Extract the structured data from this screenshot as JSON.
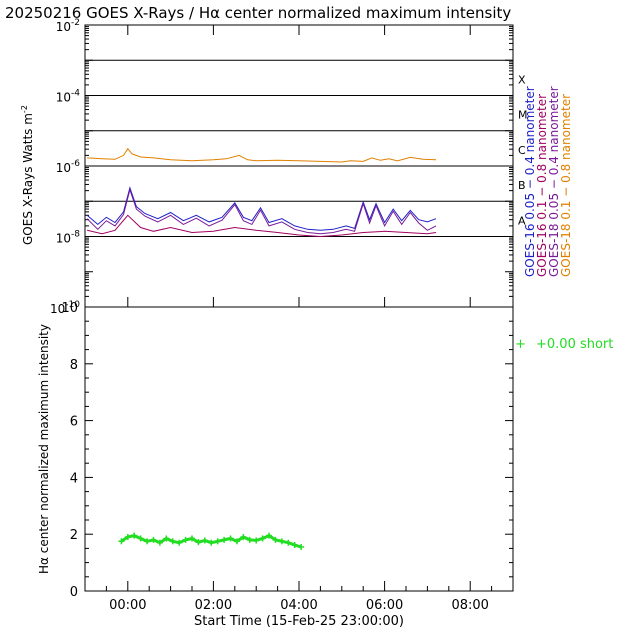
{
  "title": "20250216 GOES X-Rays / Hα center normalized maximum intensity",
  "top_panel": {
    "ylabel": "GOES X-Rays Watts m",
    "ylabel_sup": "-2",
    "y_ticks": [
      {
        "base": "10",
        "exp": "-2"
      },
      {
        "base": "10",
        "exp": "-4"
      },
      {
        "base": "10",
        "exp": "-6"
      },
      {
        "base": "10",
        "exp": "-8"
      },
      {
        "base": "10",
        "exp": "-10"
      }
    ],
    "flare_classes": [
      "X",
      "M",
      "C",
      "B",
      "A"
    ],
    "legend": [
      {
        "label": "GOES-16  0.05 − 0.4  nanometer",
        "color": "#2020c8"
      },
      {
        "label": "GOES-16  0.1  − 0.8  nanometer",
        "color": "#a00060"
      },
      {
        "label": "GOES-18  0.05 − 0.4  nanometer",
        "color": "#7a1a9a"
      },
      {
        "label": "GOES-18  0.1  − 0.8  nanometer",
        "color": "#e08000"
      }
    ]
  },
  "bottom_panel": {
    "ylabel": "Hα center normalized maximum intensity",
    "xlabel": "Start Time (15-Feb-25 23:00:00)",
    "legend": {
      "marker": "+",
      "label": "+0.00 short",
      "color": "#22dd22"
    }
  },
  "chart_data": [
    {
      "type": "line",
      "title": "GOES X-Rays",
      "y_scale": "log",
      "ylim": [
        1e-10,
        0.01
      ],
      "x_unit": "hours since 00:00 UT 16-Feb-2025",
      "xlim": [
        -1,
        9
      ],
      "flare_thresholds": [
        1e-08,
        1e-07,
        1e-06,
        1e-05,
        0.0001,
        0.001
      ],
      "series": [
        {
          "name": "GOES-18 0.1 − 0.8 nanometer",
          "x": [
            -0.95,
            -0.6,
            -0.3,
            -0.1,
            0.0,
            0.1,
            0.3,
            0.6,
            1.0,
            1.5,
            2.0,
            2.3,
            2.6,
            2.8,
            3.0,
            3.5,
            4.0,
            4.5,
            5.0,
            5.2,
            5.5,
            5.7,
            5.9,
            6.1,
            6.3,
            6.6,
            6.9,
            7.2
          ],
          "values": [
            1.7e-06,
            1.6e-06,
            1.55e-06,
            2e-06,
            3.1e-06,
            2.2e-06,
            1.8e-06,
            1.7e-06,
            1.5e-06,
            1.4e-06,
            1.5e-06,
            1.6e-06,
            2e-06,
            1.5e-06,
            1.4e-06,
            1.45e-06,
            1.4e-06,
            1.35e-06,
            1.3e-06,
            1.4e-06,
            1.35e-06,
            1.7e-06,
            1.45e-06,
            1.6e-06,
            1.4e-06,
            1.75e-06,
            1.55e-06,
            1.5e-06
          ]
        },
        {
          "name": "GOES-16 0.05 − 0.4 nanometer",
          "x": [
            -0.95,
            -0.7,
            -0.5,
            -0.3,
            -0.1,
            0.05,
            0.2,
            0.4,
            0.7,
            1.0,
            1.3,
            1.6,
            1.9,
            2.2,
            2.5,
            2.7,
            2.9,
            3.1,
            3.3,
            3.6,
            3.9,
            4.2,
            4.5,
            4.8,
            5.1,
            5.3,
            5.5,
            5.65,
            5.8,
            6.0,
            6.2,
            6.4,
            6.6,
            6.8,
            7.0,
            7.2
          ],
          "values": [
            4e-08,
            2.2e-08,
            3.5e-08,
            2.5e-08,
            5e-08,
            2.4e-07,
            7e-08,
            4.5e-08,
            3.2e-08,
            4.8e-08,
            2.8e-08,
            4e-08,
            2.6e-08,
            3.5e-08,
            9e-08,
            3.5e-08,
            2.8e-08,
            6.5e-08,
            2.5e-08,
            3.2e-08,
            2e-08,
            1.6e-08,
            1.5e-08,
            1.6e-08,
            2e-08,
            1.7e-08,
            9.5e-08,
            3e-08,
            8.5e-08,
            2.5e-08,
            6e-08,
            2.8e-08,
            5.5e-08,
            3e-08,
            2.6e-08,
            3.2e-08
          ]
        },
        {
          "name": "GOES-16 0.1 − 0.8 nanometer",
          "x": [
            -0.95,
            -0.6,
            -0.3,
            0.0,
            0.3,
            0.6,
            1.0,
            1.5,
            2.0,
            2.5,
            3.0,
            3.5,
            4.0,
            4.5,
            5.0,
            5.5,
            6.0,
            6.5,
            7.0,
            7.2
          ],
          "values": [
            1.5e-08,
            1.2e-08,
            1.5e-08,
            4e-08,
            1.8e-08,
            1.4e-08,
            1.8e-08,
            1.3e-08,
            1.4e-08,
            1.8e-08,
            1.5e-08,
            1.3e-08,
            1.1e-08,
            1e-08,
            1.1e-08,
            1.3e-08,
            1.4e-08,
            1.3e-08,
            1.2e-08,
            1.3e-08
          ]
        },
        {
          "name": "GOES-18 0.05 − 0.4 nanometer",
          "x": [
            -0.95,
            -0.7,
            -0.5,
            -0.3,
            -0.1,
            0.05,
            0.2,
            0.4,
            0.7,
            1.0,
            1.3,
            1.6,
            1.9,
            2.2,
            2.5,
            2.7,
            2.9,
            3.1,
            3.3,
            3.6,
            3.9,
            4.2,
            4.5,
            4.8,
            5.1,
            5.3,
            5.5,
            5.65,
            5.8,
            6.0,
            6.2,
            6.4,
            6.6,
            6.8,
            7.0,
            7.2
          ],
          "values": [
            3.2e-08,
            1.6e-08,
            2.8e-08,
            2e-08,
            4.2e-08,
            2.1e-07,
            6e-08,
            3.8e-08,
            2.6e-08,
            4e-08,
            2.2e-08,
            3.3e-08,
            2e-08,
            2.9e-08,
            8e-08,
            2.8e-08,
            2.2e-08,
            5.6e-08,
            2e-08,
            2.6e-08,
            1.6e-08,
            1.3e-08,
            1.2e-08,
            1.3e-08,
            1.6e-08,
            1.4e-08,
            8.5e-08,
            2.4e-08,
            7.5e-08,
            2e-08,
            5.2e-08,
            2.2e-08,
            4.8e-08,
            2.4e-08,
            1.5e-08,
            2e-08
          ]
        }
      ]
    },
    {
      "type": "scatter",
      "title": "Hα center normalized maximum intensity",
      "ylim": [
        0,
        10
      ],
      "y_ticks": [
        0,
        2,
        4,
        6,
        8,
        10
      ],
      "xlim": [
        -1,
        9
      ],
      "x_ticks": [
        0,
        2,
        4,
        6,
        8
      ],
      "x_tick_labels": [
        "00:00",
        "02:00",
        "04:00",
        "06:00",
        "08:00"
      ],
      "series": [
        {
          "name": "+0.00 short",
          "x": [
            -0.15,
            0.0,
            0.15,
            0.3,
            0.45,
            0.6,
            0.75,
            0.9,
            1.05,
            1.2,
            1.35,
            1.5,
            1.65,
            1.8,
            1.95,
            2.1,
            2.25,
            2.4,
            2.55,
            2.7,
            2.85,
            3.0,
            3.15,
            3.3,
            3.45,
            3.6,
            3.75,
            3.9,
            4.05
          ],
          "values": [
            1.75,
            1.9,
            1.95,
            1.85,
            1.75,
            1.8,
            1.7,
            1.85,
            1.75,
            1.7,
            1.8,
            1.85,
            1.72,
            1.78,
            1.7,
            1.75,
            1.8,
            1.85,
            1.75,
            1.9,
            1.8,
            1.78,
            1.85,
            1.95,
            1.8,
            1.75,
            1.7,
            1.62,
            1.55
          ]
        }
      ]
    }
  ]
}
